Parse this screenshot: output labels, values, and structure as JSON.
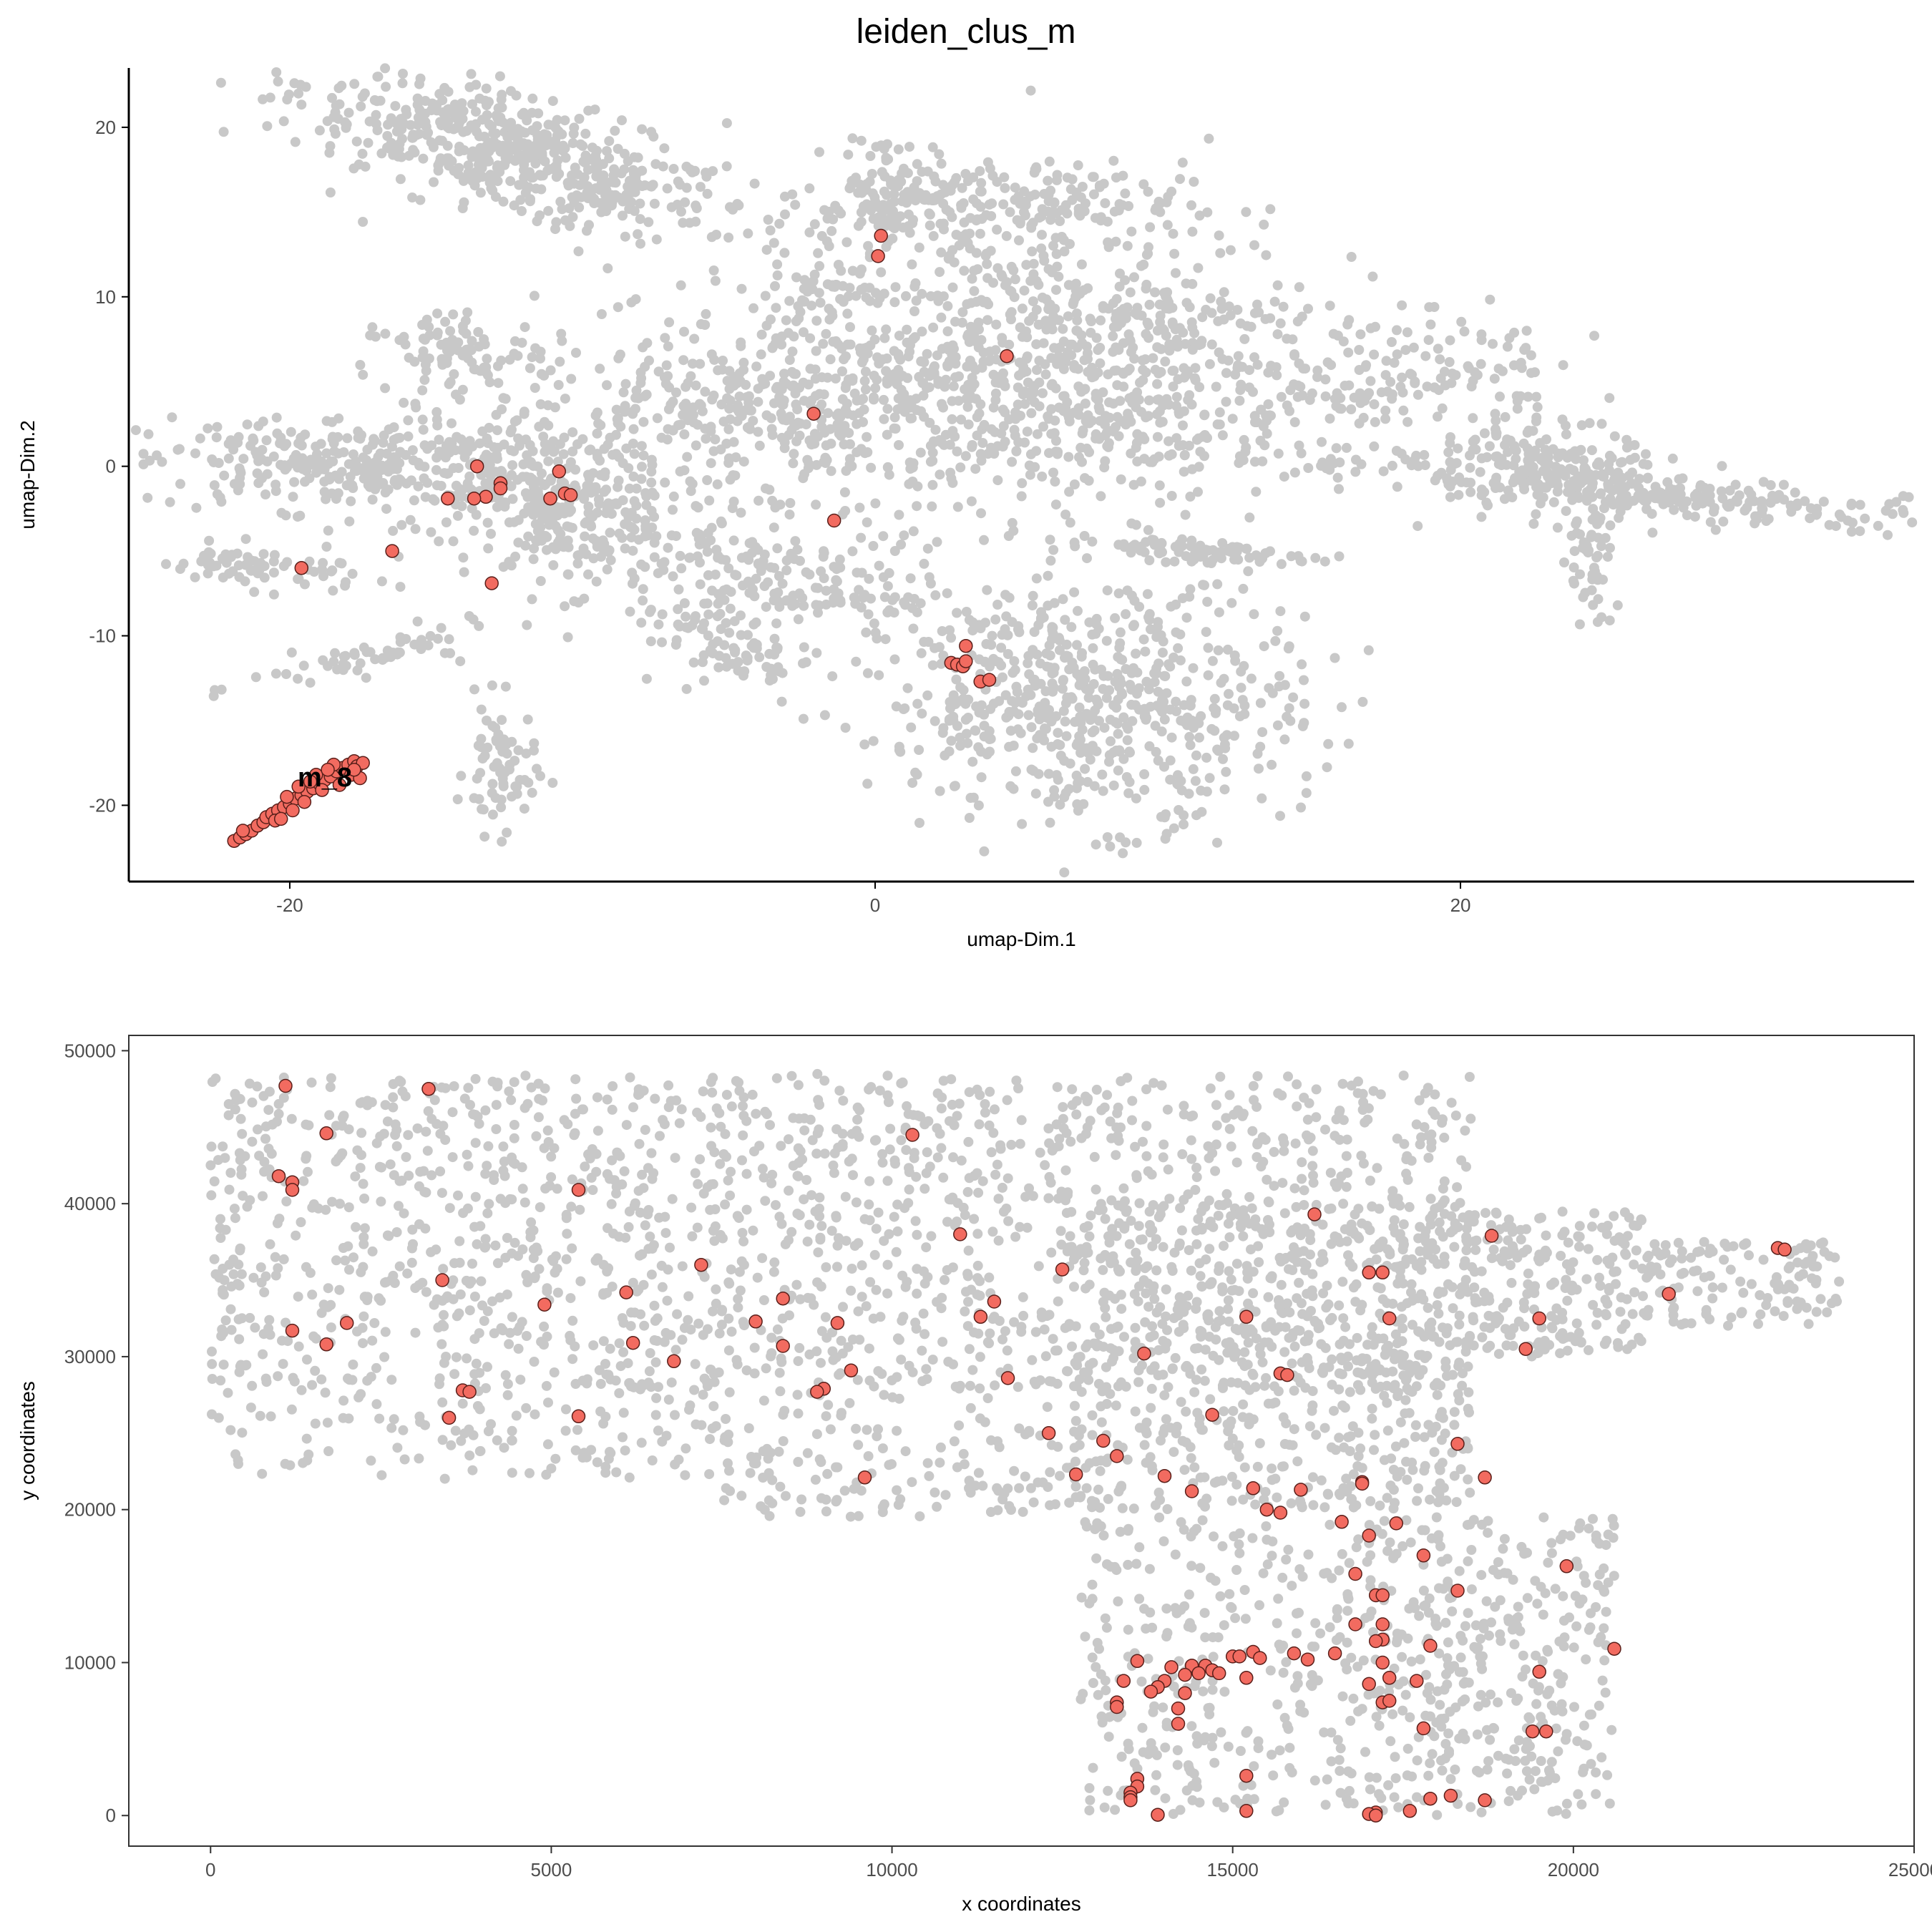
{
  "title": "leiden_clus_m",
  "colors": {
    "background": "#c8c8c8",
    "highlight": "#f26b60",
    "highlight_stroke": "#5a1f1a",
    "axis": "#000000",
    "panel_border": "#333333"
  },
  "chart_data": [
    {
      "type": "scatter",
      "title": "leiden_clus_m",
      "xlabel": "umap-Dim.1",
      "ylabel": "umap-Dim.2",
      "xlim": [
        -25.5,
        35.5
      ],
      "ylim": [
        -24.5,
        23.5
      ],
      "xticks": [
        -20,
        0,
        20
      ],
      "yticks": [
        -20,
        -10,
        0,
        10,
        20
      ],
      "cluster_label": {
        "text": "m_8",
        "x": -18.8,
        "y": -18.3
      },
      "background_regions": [
        [
          -12.5,
          18.5,
          4.0,
          1.5,
          -30,
          550
        ],
        [
          -14.3,
          6.5,
          1.6,
          1.5,
          10,
          100
        ],
        [
          -18.0,
          0.2,
          3.6,
          1.4,
          0,
          300
        ],
        [
          -12.0,
          -1.5,
          2.6,
          1.6,
          -10,
          160
        ],
        [
          -10.5,
          -3.5,
          1.1,
          2.0,
          0,
          80
        ],
        [
          -21.0,
          -6.0,
          1.8,
          0.6,
          -8,
          70
        ],
        [
          -17.0,
          -11.2,
          2.3,
          0.5,
          20,
          60
        ],
        [
          -12.8,
          -17.9,
          0.6,
          1.9,
          0,
          70
        ],
        [
          0.5,
          16.5,
          0.8,
          1.6,
          0,
          80
        ],
        [
          3.5,
          15.5,
          3.5,
          1.2,
          0,
          200
        ],
        [
          6.5,
          6.0,
          4.5,
          4.5,
          10,
          900
        ],
        [
          -4.0,
          3.0,
          4.5,
          3.0,
          20,
          500
        ],
        [
          -3.5,
          -6.5,
          1.4,
          4.5,
          70,
          220
        ],
        [
          -5.0,
          -10.5,
          2.0,
          1.2,
          -40,
          100
        ],
        [
          7.5,
          -14.0,
          3.5,
          3.4,
          -10,
          600
        ],
        [
          11.0,
          -5.0,
          2.0,
          0.4,
          -10,
          80
        ],
        [
          22.5,
          0.0,
          2.2,
          1.4,
          -15,
          150
        ],
        [
          26.5,
          -1.5,
          6.5,
          0.7,
          -10,
          300
        ],
        [
          24.5,
          -6.0,
          0.4,
          2.2,
          0,
          50
        ],
        [
          20.0,
          6.0,
          2.0,
          1.5,
          -20,
          80
        ],
        [
          16.5,
          4.0,
          1.0,
          0.6,
          0,
          30
        ],
        [
          -1.5,
          10.5,
          1.0,
          1.0,
          0,
          40
        ]
      ],
      "highlight_points": [
        [
          -21.9,
          -22.1
        ],
        [
          -21.7,
          -21.9
        ],
        [
          -21.5,
          -21.7
        ],
        [
          -21.3,
          -21.5
        ],
        [
          -21.1,
          -21.2
        ],
        [
          -20.9,
          -21.0
        ],
        [
          -20.8,
          -20.7
        ],
        [
          -20.6,
          -20.5
        ],
        [
          -20.4,
          -20.3
        ],
        [
          -20.2,
          -20.1
        ],
        [
          -20.0,
          -19.9
        ],
        [
          -19.8,
          -19.6
        ],
        [
          -19.6,
          -19.4
        ],
        [
          -19.4,
          -19.2
        ],
        [
          -19.2,
          -19.0
        ],
        [
          -19.0,
          -18.7
        ],
        [
          -18.8,
          -18.5
        ],
        [
          -18.6,
          -18.3
        ],
        [
          -18.4,
          -18.0
        ],
        [
          -18.2,
          -17.8
        ],
        [
          -18.0,
          -17.6
        ],
        [
          -17.8,
          -17.4
        ],
        [
          -17.7,
          -17.7
        ],
        [
          -17.5,
          -17.5
        ],
        [
          -19.9,
          -20.3
        ],
        [
          -20.5,
          -20.9
        ],
        [
          -19.5,
          -19.8
        ],
        [
          -18.9,
          -19.1
        ],
        [
          -18.3,
          -18.8
        ],
        [
          -17.9,
          -18.2
        ],
        [
          -20.1,
          -19.5
        ],
        [
          -19.7,
          -18.9
        ],
        [
          -19.1,
          -18.2
        ],
        [
          -18.5,
          -17.6
        ],
        [
          -17.6,
          -18.4
        ],
        [
          -21.6,
          -21.5
        ],
        [
          -20.3,
          -20.8
        ],
        [
          -19.3,
          -18.6
        ],
        [
          -18.7,
          -17.9
        ],
        [
          -17.8,
          -17.9
        ],
        [
          0.2,
          13.6
        ],
        [
          0.1,
          12.4
        ],
        [
          4.5,
          6.5
        ],
        [
          -2.1,
          3.1
        ],
        [
          -1.4,
          -3.2
        ],
        [
          -13.6,
          0.0
        ],
        [
          -12.8,
          -1.0
        ],
        [
          -12.8,
          -1.3
        ],
        [
          -13.3,
          -1.8
        ],
        [
          -14.6,
          -1.9
        ],
        [
          -13.7,
          -1.9
        ],
        [
          -10.6,
          -1.6
        ],
        [
          -10.4,
          -1.7
        ],
        [
          -10.8,
          -0.3
        ],
        [
          -11.1,
          -1.9
        ],
        [
          -16.5,
          -5.0
        ],
        [
          -13.1,
          -6.9
        ],
        [
          -19.6,
          -6.0
        ],
        [
          2.6,
          -11.6
        ],
        [
          2.8,
          -11.7
        ],
        [
          3.0,
          -11.8
        ],
        [
          3.1,
          -11.5
        ],
        [
          3.1,
          -10.6
        ],
        [
          3.6,
          -12.7
        ],
        [
          3.9,
          -12.6
        ]
      ]
    },
    {
      "type": "scatter",
      "title": "",
      "xlabel": "x coordinates",
      "ylabel": "y coordinates",
      "xlim": [
        -1200,
        25000
      ],
      "ylim": [
        -2000,
        51000
      ],
      "xticks": [
        0,
        5000,
        10000,
        15000,
        20000,
        25000
      ],
      "yticks": [
        0,
        10000,
        20000,
        30000,
        40000,
        50000
      ],
      "background_regions": [
        [
          0,
          28000,
          18500,
          48500,
          1600
        ],
        [
          0,
          22000,
          12600,
          28500,
          240
        ],
        [
          12600,
          20000,
          18500,
          40000,
          700
        ],
        [
          18500,
          30000,
          21000,
          39500,
          200
        ],
        [
          21000,
          32000,
          23900,
          37500,
          130
        ],
        [
          12700,
          0,
          16500,
          19500,
          260
        ],
        [
          16500,
          0,
          20600,
          19500,
          420
        ],
        [
          7500,
          19500,
          12400,
          22000,
          60
        ]
      ],
      "highlight_points": [
        [
          1100,
          47700
        ],
        [
          3200,
          47500
        ],
        [
          1700,
          44600
        ],
        [
          10300,
          44500
        ],
        [
          1000,
          41800
        ],
        [
          1200,
          41400
        ],
        [
          1200,
          40900
        ],
        [
          5400,
          40900
        ],
        [
          16200,
          39300
        ],
        [
          18800,
          37900
        ],
        [
          11000,
          38000
        ],
        [
          23000,
          37100
        ],
        [
          23100,
          37000
        ],
        [
          12500,
          35700
        ],
        [
          7200,
          36000
        ],
        [
          17000,
          35500
        ],
        [
          17200,
          35500
        ],
        [
          3400,
          35000
        ],
        [
          6100,
          34200
        ],
        [
          8400,
          33800
        ],
        [
          11500,
          33600
        ],
        [
          21400,
          34100
        ],
        [
          4900,
          33400
        ],
        [
          11300,
          32600
        ],
        [
          15200,
          32600
        ],
        [
          17300,
          32500
        ],
        [
          19500,
          32500
        ],
        [
          8000,
          32300
        ],
        [
          9200,
          32200
        ],
        [
          2000,
          32200
        ],
        [
          1200,
          31700
        ],
        [
          1700,
          30800
        ],
        [
          6200,
          30900
        ],
        [
          8400,
          30700
        ],
        [
          13700,
          30200
        ],
        [
          19300,
          30500
        ],
        [
          6800,
          29700
        ],
        [
          9400,
          29100
        ],
        [
          15700,
          28900
        ],
        [
          15800,
          28800
        ],
        [
          11700,
          28600
        ],
        [
          9000,
          27900
        ],
        [
          8900,
          27700
        ],
        [
          3700,
          27800
        ],
        [
          3800,
          27700
        ],
        [
          3500,
          26000
        ],
        [
          5400,
          26100
        ],
        [
          14700,
          26200
        ],
        [
          12300,
          25000
        ],
        [
          13100,
          24500
        ],
        [
          18300,
          24300
        ],
        [
          13300,
          23500
        ],
        [
          12700,
          22300
        ],
        [
          9600,
          22100
        ],
        [
          14000,
          22200
        ],
        [
          18700,
          22100
        ],
        [
          16900,
          21800
        ],
        [
          16900,
          21700
        ],
        [
          15300,
          21400
        ],
        [
          16000,
          21300
        ],
        [
          14400,
          21200
        ],
        [
          15500,
          20000
        ],
        [
          15700,
          19800
        ],
        [
          16600,
          19200
        ],
        [
          17400,
          19100
        ],
        [
          17000,
          18300
        ],
        [
          17800,
          17000
        ],
        [
          19900,
          16300
        ],
        [
          16800,
          15800
        ],
        [
          18300,
          14700
        ],
        [
          17100,
          14400
        ],
        [
          17200,
          14400
        ],
        [
          16800,
          12500
        ],
        [
          17200,
          12500
        ],
        [
          17200,
          11500
        ],
        [
          17100,
          11400
        ],
        [
          17900,
          11100
        ],
        [
          20600,
          10900
        ],
        [
          16500,
          10600
        ],
        [
          15900,
          10600
        ],
        [
          15300,
          10700
        ],
        [
          15000,
          10400
        ],
        [
          15100,
          10400
        ],
        [
          15400,
          10300
        ],
        [
          16100,
          10200
        ],
        [
          13600,
          10100
        ],
        [
          14100,
          9700
        ],
        [
          14400,
          9800
        ],
        [
          14600,
          9800
        ],
        [
          14700,
          9500
        ],
        [
          14500,
          9300
        ],
        [
          14300,
          9200
        ],
        [
          14800,
          9300
        ],
        [
          15200,
          9000
        ],
        [
          14000,
          8800
        ],
        [
          13400,
          8800
        ],
        [
          17200,
          10000
        ],
        [
          17000,
          8600
        ],
        [
          17300,
          9000
        ],
        [
          17700,
          8800
        ],
        [
          19500,
          9400
        ],
        [
          13900,
          8400
        ],
        [
          13800,
          8100
        ],
        [
          14300,
          8000
        ],
        [
          13300,
          7400
        ],
        [
          13300,
          7100
        ],
        [
          14200,
          7000
        ],
        [
          17200,
          7400
        ],
        [
          17300,
          7500
        ],
        [
          14200,
          6000
        ],
        [
          17800,
          5700
        ],
        [
          19400,
          5500
        ],
        [
          19600,
          5500
        ],
        [
          13600,
          2400
        ],
        [
          15200,
          2600
        ],
        [
          13600,
          1900
        ],
        [
          13500,
          1500
        ],
        [
          13500,
          1200
        ],
        [
          13500,
          1000
        ],
        [
          17900,
          1100
        ],
        [
          18200,
          1300
        ],
        [
          18700,
          1000
        ],
        [
          15200,
          300
        ],
        [
          13900,
          50
        ],
        [
          17100,
          200
        ],
        [
          17000,
          100
        ],
        [
          17100,
          0
        ],
        [
          17600,
          300
        ]
      ]
    }
  ]
}
